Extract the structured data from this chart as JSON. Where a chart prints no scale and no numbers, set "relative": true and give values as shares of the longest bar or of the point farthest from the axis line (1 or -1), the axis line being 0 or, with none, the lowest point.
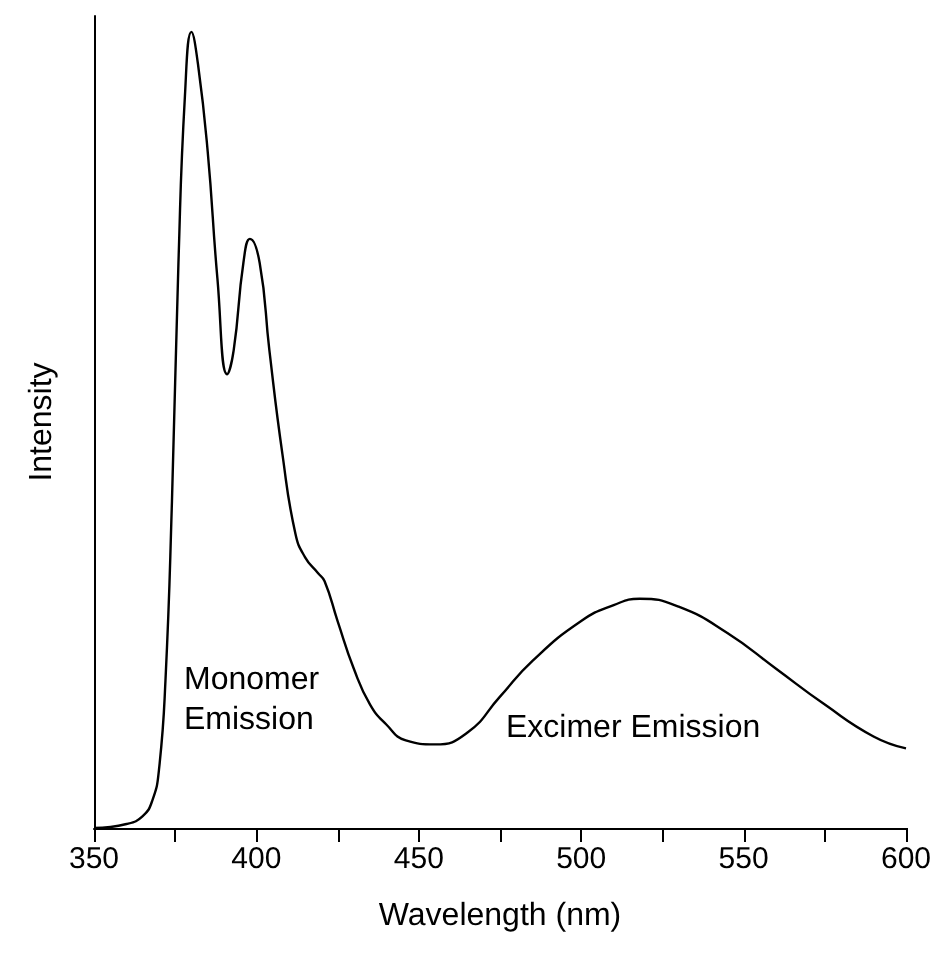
{
  "chart_data": {
    "type": "line",
    "xlabel": "Wavelength (nm)",
    "ylabel": "Intensity",
    "relative": true,
    "color": "#000000",
    "x": [
      350,
      360,
      365,
      368,
      370,
      372,
      374,
      376,
      378,
      380,
      382,
      385,
      388,
      391,
      393,
      396,
      398,
      401,
      404,
      408,
      412,
      415,
      419,
      421,
      425,
      430,
      435,
      440,
      446,
      455,
      465,
      475,
      485,
      500,
      510,
      518,
      530,
      545,
      560,
      575,
      590,
      600
    ],
    "values": [
      0,
      0.005,
      0.015,
      0.035,
      0.073,
      0.185,
      0.41,
      0.71,
      0.92,
      1.0,
      0.96,
      0.85,
      0.69,
      0.57,
      0.6,
      0.71,
      0.74,
      0.71,
      0.6,
      0.47,
      0.37,
      0.34,
      0.32,
      0.31,
      0.26,
      0.2,
      0.155,
      0.13,
      0.11,
      0.105,
      0.12,
      0.165,
      0.21,
      0.26,
      0.28,
      0.288,
      0.278,
      0.245,
      0.2,
      0.155,
      0.115,
      0.1
    ],
    "xlim": [
      350,
      600
    ],
    "xticks": [
      350,
      {
        "value": 375,
        "label": null
      },
      400,
      {
        "value": 425,
        "label": null
      },
      450,
      {
        "value": 475,
        "label": null
      },
      500,
      {
        "value": 525,
        "label": null
      },
      550,
      {
        "value": 575,
        "label": null
      },
      600
    ],
    "annotations": [
      "Monomer\nEmission",
      "Excimer Emission"
    ],
    "grid": false,
    "marker": "none",
    "line_style": "solid"
  }
}
